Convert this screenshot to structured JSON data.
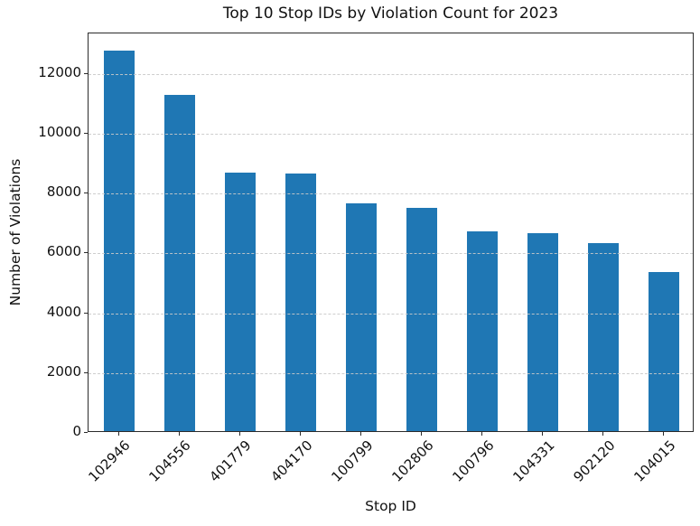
{
  "chart_data": {
    "type": "bar",
    "title": "Top 10 Stop IDs by Violation Count for 2023",
    "xlabel": "Stop ID",
    "ylabel": "Number of Violations",
    "categories": [
      "102946",
      "104556",
      "401779",
      "404170",
      "100799",
      "102806",
      "100796",
      "104331",
      "902120",
      "104015"
    ],
    "values": [
      12730,
      11250,
      8660,
      8600,
      7610,
      7460,
      6680,
      6630,
      6280,
      5330
    ],
    "yticks": [
      0,
      2000,
      4000,
      6000,
      8000,
      10000,
      12000
    ],
    "ylim": [
      0,
      13360
    ],
    "bar_color": "#1f77b4",
    "grid": true,
    "grid_axis": "y",
    "grid_style": "dashed",
    "grid_color": "#c9c9c9",
    "xtick_rotation": 45,
    "legend_position": "none"
  }
}
